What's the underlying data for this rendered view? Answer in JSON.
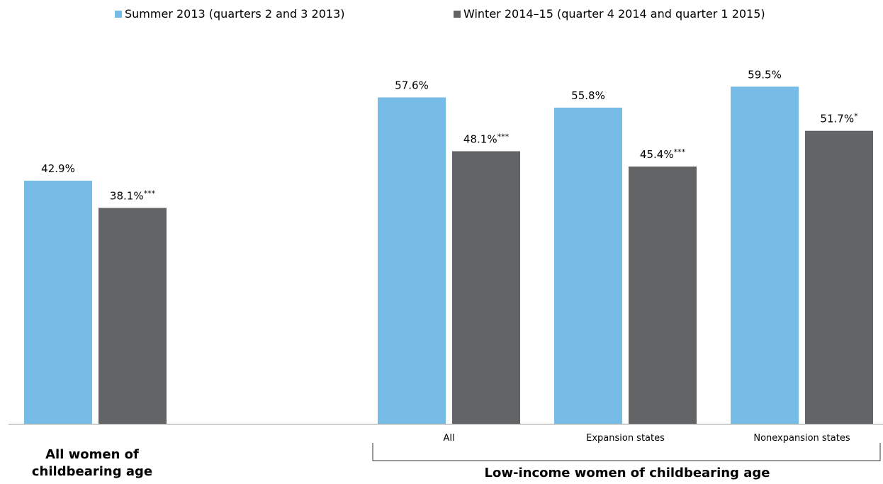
{
  "chart_data": {
    "type": "bar",
    "title": "",
    "ylabel": "",
    "ylim": [
      0,
      65
    ],
    "grid": false,
    "legend_position": "top",
    "colors": {
      "summer": "#77bce6",
      "winter": "#636466",
      "axis": "#9a9a9a",
      "brace": "#333333"
    },
    "series": [
      {
        "name": "Summer 2013 (quarters 2 and 3 2013)",
        "values": [
          42.9,
          57.6,
          55.8,
          59.5
        ],
        "labels": [
          "42.9%",
          "57.6%",
          "55.8%",
          "59.5%"
        ]
      },
      {
        "name": "Winter 2014–15 (quarter 4 2014 and quarter 1 2015)",
        "values": [
          38.1,
          48.1,
          45.4,
          51.7
        ],
        "labels": [
          "38.1%",
          "48.1%",
          "45.4%",
          "51.7%"
        ],
        "significance": [
          "***",
          "***",
          "***",
          "*"
        ]
      }
    ],
    "categories": [
      "",
      "All",
      "Expansion states",
      "Nonexpansion states"
    ],
    "groups": [
      {
        "label_lines": [
          "All women of",
          "childbearing age"
        ]
      },
      {
        "label_lines": [
          "Low-income women of childbearing age"
        ]
      }
    ]
  }
}
